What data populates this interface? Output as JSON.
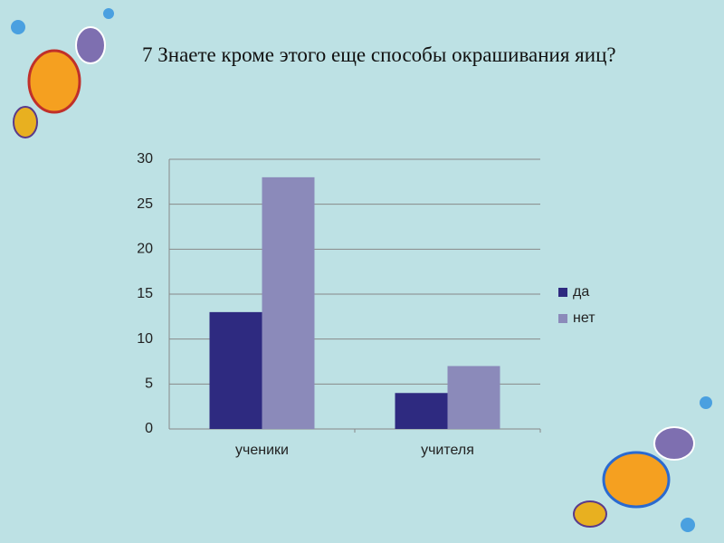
{
  "chart_data": {
    "type": "bar",
    "title": "7 Знаете кроме этого еще способы окрашивания яиц?",
    "categories": [
      "ученики",
      "учителя"
    ],
    "series": [
      {
        "name": "да",
        "color": "#2e2a80",
        "values": [
          13,
          4
        ]
      },
      {
        "name": "нет",
        "color": "#8b8aba",
        "values": [
          28,
          7
        ]
      }
    ],
    "ylim": [
      0,
      30
    ],
    "yticks": [
      0,
      5,
      10,
      15,
      20,
      25,
      30
    ],
    "grid": true,
    "legend": "right"
  }
}
